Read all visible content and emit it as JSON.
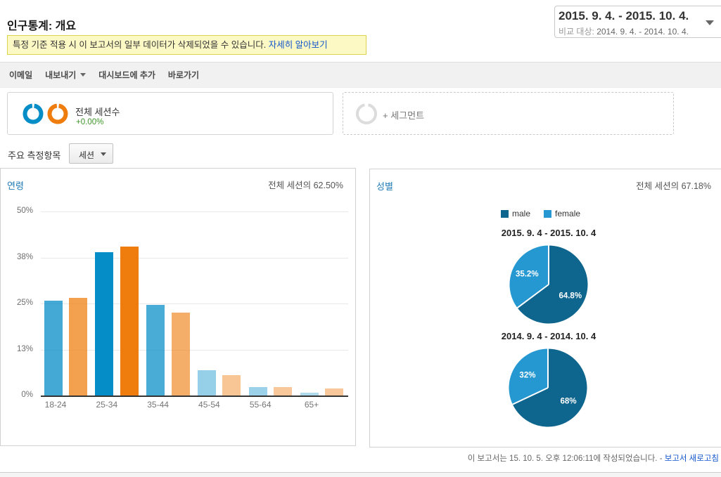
{
  "page": {
    "title": "인구통계: 개요"
  },
  "date_selector": {
    "primary": "2015. 9. 4. - 2015. 10. 4.",
    "compare_label": "비교 대상:",
    "compare_value": "2014. 9. 4. - 2014. 10. 4."
  },
  "notice": {
    "text": "특정 기준 적용 시 이 보고서의 일부 데이터가 삭제되었을 수 있습니다.",
    "link": "자세히 알아보기"
  },
  "toolbar": {
    "items": [
      {
        "label": "이메일",
        "has_dropdown": false
      },
      {
        "label": "내보내기",
        "has_dropdown": true
      },
      {
        "label": "대시보드에 추가",
        "has_dropdown": false
      },
      {
        "label": "바로가기",
        "has_dropdown": false
      }
    ]
  },
  "metric_card": {
    "label": "전체 세션수",
    "delta": "+0.00%"
  },
  "segment_box": {
    "label": "+ 세그먼트"
  },
  "metric_picker": {
    "label": "주요 측정항목",
    "value": "세션"
  },
  "colors": {
    "current_blue": "#058dc7",
    "previous_orange": "#ee7d0e",
    "male": "#0e658d",
    "female": "#2598d2",
    "delta_green": "#3d9427",
    "link_blue": "#1155cc",
    "panel_title_blue": "#1f7bb6"
  },
  "chart_data": [
    {
      "type": "bar",
      "panel_title": "연령",
      "panel_note": "전체 세션의 62.50%",
      "categories": [
        "18-24",
        "25-34",
        "35-44",
        "45-54",
        "55-64",
        "65+"
      ],
      "series": [
        {
          "name": "2015. 9. 4. - 2015. 10. 4.",
          "color": "#058dc7",
          "values": [
            25.8,
            39.0,
            24.7,
            6.9,
            2.3,
            0.8
          ],
          "opacities": [
            0.75,
            1,
            0.73,
            0.42,
            0.4,
            0.32
          ]
        },
        {
          "name": "2014. 9. 4. - 2014. 10. 4.",
          "color": "#ee7d0e",
          "values": [
            26.6,
            40.5,
            22.6,
            5.6,
            2.2,
            2.0
          ],
          "opacities": [
            0.73,
            1,
            0.62,
            0.44,
            0.42,
            0.42
          ]
        }
      ],
      "ylim": [
        0,
        50
      ],
      "yticks": [
        {
          "value": 0,
          "label": "0%"
        },
        {
          "value": 12.5,
          "label": "13%"
        },
        {
          "value": 25,
          "label": "25%"
        },
        {
          "value": 37.5,
          "label": "38%"
        },
        {
          "value": 50,
          "label": "50%"
        }
      ],
      "grid": true,
      "legend_position": "none"
    },
    {
      "type": "pie",
      "panel_title": "성별",
      "panel_note": "전체 세션의 67.18%",
      "legend": [
        {
          "label": "male",
          "color": "#0e658d"
        },
        {
          "label": "female",
          "color": "#2598d2"
        }
      ],
      "pies": [
        {
          "title": "2015. 9. 4 - 2015. 10. 4",
          "slices": [
            {
              "label": "male",
              "value": 64.8,
              "text": "64.8%",
              "color": "#0e658d"
            },
            {
              "label": "female",
              "value": 35.2,
              "text": "35.2%",
              "color": "#2598d2"
            }
          ]
        },
        {
          "title": "2014. 9. 4 - 2014. 10. 4",
          "slices": [
            {
              "label": "male",
              "value": 68,
              "text": "68%",
              "color": "#0e658d"
            },
            {
              "label": "female",
              "value": 32,
              "text": "32%",
              "color": "#2598d2"
            }
          ]
        }
      ]
    }
  ],
  "footer": {
    "text": "이 보고서는 15. 10. 5. 오후 12:06:11에 작성되었습니다. - ",
    "link": "보고서 새로고침"
  }
}
